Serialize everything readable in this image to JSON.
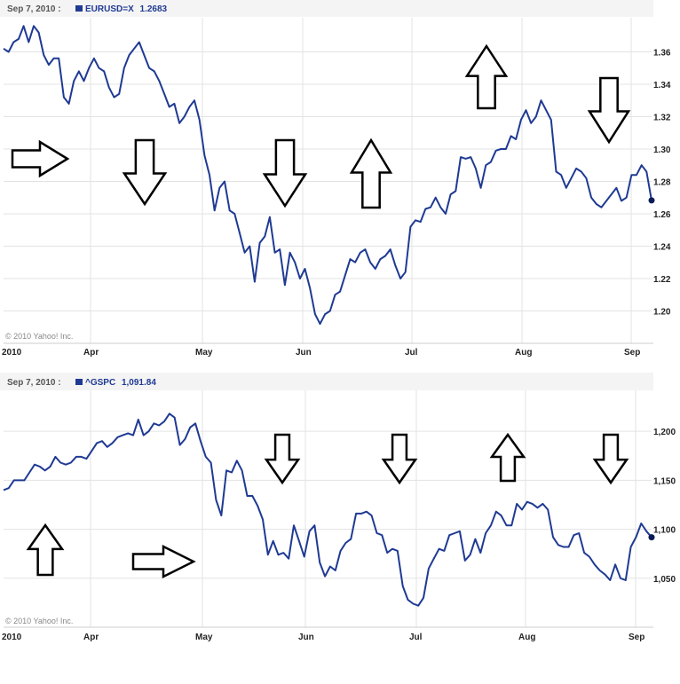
{
  "chart_data": [
    {
      "type": "line",
      "date_label": "Sep 7, 2010 :",
      "symbol": "EURUSD=X",
      "last_value": "1.2683",
      "copyright": "© 2010 Yahoo! Inc.",
      "series_color": "#1f3a93",
      "ylim": [
        1.18,
        1.38
      ],
      "y_ticks": [
        "1.20",
        "1.22",
        "1.24",
        "1.26",
        "1.28",
        "1.30",
        "1.32",
        "1.34",
        "1.36"
      ],
      "x_labels": [
        "2010",
        "Apr",
        "May",
        "Jun",
        "Jul",
        "Aug",
        "Sep"
      ],
      "series": [
        {
          "values": [
            1.362,
            1.36,
            1.366,
            1.368,
            1.376,
            1.366,
            1.376,
            1.372,
            1.358,
            1.352,
            1.356,
            1.356,
            1.332,
            1.328,
            1.342,
            1.348,
            1.342,
            1.35,
            1.356,
            1.35,
            1.348,
            1.338,
            1.332,
            1.334,
            1.35,
            1.358,
            1.362,
            1.366,
            1.358,
            1.35,
            1.348,
            1.342,
            1.334,
            1.326,
            1.328,
            1.316,
            1.32,
            1.326,
            1.33,
            1.318,
            1.296,
            1.284,
            1.262,
            1.276,
            1.28,
            1.262,
            1.26,
            1.248,
            1.236,
            1.24,
            1.218,
            1.242,
            1.246,
            1.258,
            1.236,
            1.238,
            1.216,
            1.236,
            1.23,
            1.22,
            1.226,
            1.214,
            1.198,
            1.192,
            1.198,
            1.2,
            1.21,
            1.212,
            1.222,
            1.232,
            1.23,
            1.236,
            1.238,
            1.23,
            1.226,
            1.232,
            1.234,
            1.238,
            1.228,
            1.22,
            1.224,
            1.252,
            1.256,
            1.255,
            1.263,
            1.264,
            1.27,
            1.264,
            1.26,
            1.272,
            1.274,
            1.295,
            1.294,
            1.295,
            1.288,
            1.276,
            1.29,
            1.292,
            1.299,
            1.3,
            1.3,
            1.308,
            1.306,
            1.318,
            1.324,
            1.316,
            1.32,
            1.33,
            1.324,
            1.318,
            1.286,
            1.284,
            1.276,
            1.282,
            1.288,
            1.286,
            1.282,
            1.27,
            1.266,
            1.264,
            1.268,
            1.272,
            1.276,
            1.268,
            1.27,
            1.284,
            1.284,
            1.29,
            1.286,
            1.2683
          ]
        }
      ]
    },
    {
      "type": "line",
      "date_label": "Sep 7, 2010 :",
      "symbol": "^GSPC",
      "last_value": "1,091.84",
      "copyright": "© 2010 Yahoo! Inc.",
      "series_color": "#1f3a93",
      "ylim": [
        1000,
        1240
      ],
      "y_ticks": [
        "1,050",
        "1,100",
        "1,150",
        "1,200"
      ],
      "x_labels": [
        "2010",
        "Apr",
        "May",
        "Jun",
        "Jul",
        "Aug",
        "Sep"
      ],
      "series": [
        {
          "values": [
            1140,
            1142,
            1150,
            1150,
            1150,
            1158,
            1166,
            1164,
            1160,
            1164,
            1174,
            1168,
            1166,
            1168,
            1174,
            1174,
            1172,
            1180,
            1188,
            1190,
            1184,
            1188,
            1194,
            1196,
            1198,
            1196,
            1212,
            1196,
            1200,
            1208,
            1206,
            1210,
            1218,
            1214,
            1186,
            1192,
            1204,
            1208,
            1190,
            1174,
            1168,
            1130,
            1114,
            1160,
            1158,
            1170,
            1160,
            1134,
            1134,
            1124,
            1110,
            1074,
            1088,
            1074,
            1076,
            1070,
            1104,
            1088,
            1072,
            1098,
            1104,
            1066,
            1052,
            1062,
            1058,
            1078,
            1086,
            1090,
            1116,
            1116,
            1118,
            1114,
            1096,
            1094,
            1076,
            1080,
            1078,
            1042,
            1028,
            1024,
            1022,
            1030,
            1060,
            1070,
            1080,
            1078,
            1094,
            1096,
            1098,
            1068,
            1074,
            1090,
            1076,
            1096,
            1104,
            1118,
            1114,
            1104,
            1104,
            1126,
            1120,
            1128,
            1126,
            1122,
            1126,
            1120,
            1092,
            1084,
            1082,
            1082,
            1094,
            1096,
            1076,
            1072,
            1064,
            1058,
            1054,
            1048,
            1064,
            1050,
            1048,
            1082,
            1092,
            1106,
            1098,
            1091.84
          ]
        }
      ]
    }
  ],
  "annotations": {
    "top_arrows": [
      "right",
      "down",
      "down",
      "up",
      "up",
      "down"
    ],
    "bottom_arrows": [
      "up",
      "right",
      "down",
      "down",
      "up",
      "down"
    ]
  }
}
